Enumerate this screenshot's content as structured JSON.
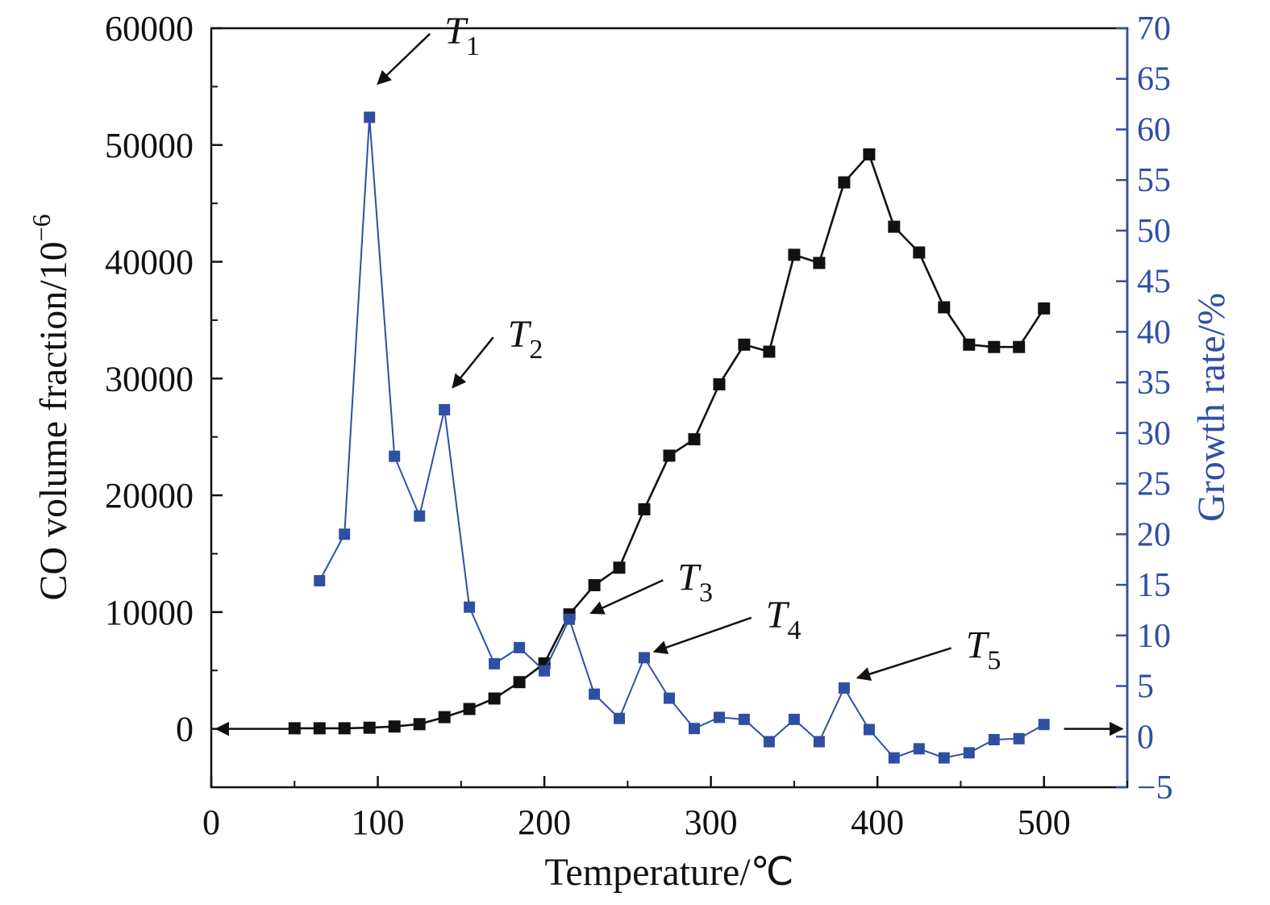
{
  "chart_data": {
    "type": "line",
    "xlabel": "Temperature/℃",
    "xlim": [
      0,
      550
    ],
    "x_ticks": [
      "0",
      "100",
      "200",
      "300",
      "400",
      "500"
    ],
    "ylabel_left": "CO volume fraction/10",
    "ylabel_left_exponent": "−6",
    "ylim_left": [
      -5000,
      60000
    ],
    "left_ticks": [
      "0",
      "10000",
      "20000",
      "30000",
      "40000",
      "50000",
      "60000"
    ],
    "ylabel_right": "Growth rate/%",
    "ylim_right": [
      -5,
      70
    ],
    "right_ticks": [
      "−5",
      "0",
      "5",
      "10",
      "15",
      "20",
      "25",
      "30",
      "35",
      "40",
      "45",
      "50",
      "55",
      "60",
      "65",
      "70"
    ],
    "grid": false,
    "colors": {
      "co_series": "#111111",
      "growth_series": "#2f4fa3",
      "right_axis": "#2f4fa3"
    },
    "series": [
      {
        "axis": "left",
        "marker": "square",
        "points": [
          [
            50,
            50
          ],
          [
            65,
            50
          ],
          [
            80,
            50
          ],
          [
            95,
            100
          ],
          [
            110,
            200
          ],
          [
            125,
            400
          ],
          [
            140,
            1000
          ],
          [
            155,
            1700
          ],
          [
            170,
            2600
          ],
          [
            185,
            4000
          ],
          [
            200,
            5600
          ],
          [
            215,
            9800
          ],
          [
            230,
            12300
          ],
          [
            245,
            13800
          ],
          [
            260,
            18800
          ],
          [
            275,
            23400
          ],
          [
            290,
            24800
          ],
          [
            305,
            29500
          ],
          [
            320,
            32900
          ],
          [
            335,
            32300
          ],
          [
            350,
            40600
          ],
          [
            365,
            39900
          ],
          [
            380,
            46800
          ],
          [
            395,
            49200
          ],
          [
            410,
            43000
          ],
          [
            425,
            40800
          ],
          [
            440,
            36100
          ],
          [
            455,
            32900
          ],
          [
            470,
            32700
          ],
          [
            485,
            32700
          ],
          [
            500,
            36000
          ]
        ]
      },
      {
        "axis": "right",
        "marker": "square",
        "points": [
          [
            65,
            15.4
          ],
          [
            80,
            20
          ],
          [
            95,
            61.2
          ],
          [
            110,
            27.7
          ],
          [
            125,
            21.8
          ],
          [
            140,
            32.3
          ],
          [
            155,
            12.8
          ],
          [
            170,
            7.2
          ],
          [
            185,
            8.8
          ],
          [
            200,
            6.5
          ],
          [
            215,
            11.6
          ],
          [
            230,
            4.2
          ],
          [
            245,
            1.8
          ],
          [
            260,
            7.8
          ],
          [
            275,
            3.8
          ],
          [
            290,
            0.8
          ],
          [
            305,
            1.9
          ],
          [
            320,
            1.7
          ],
          [
            335,
            -0.5
          ],
          [
            350,
            1.7
          ],
          [
            365,
            -0.5
          ],
          [
            380,
            4.8
          ],
          [
            395,
            0.7
          ],
          [
            410,
            -2.1
          ],
          [
            425,
            -1.2
          ],
          [
            440,
            -2.1
          ],
          [
            455,
            -1.6
          ],
          [
            470,
            -0.3
          ],
          [
            485,
            -0.2
          ],
          [
            500,
            1.2
          ]
        ]
      }
    ],
    "annotations": [
      {
        "label": "T",
        "sub": "1",
        "x": 140,
        "y": 68.5,
        "target_x": 100,
        "target_y": 64.5,
        "axis": "right"
      },
      {
        "label": "T",
        "sub": "2",
        "x": 178,
        "y": 38.5,
        "target_x": 145,
        "target_y": 34.5,
        "axis": "right"
      },
      {
        "label": "T",
        "sub": "3",
        "x": 280,
        "y": 14.5,
        "target_x": 228,
        "target_y": 12.2,
        "axis": "right"
      },
      {
        "label": "T",
        "sub": "4",
        "x": 333,
        "y": 10.8,
        "target_x": 266,
        "target_y": 8.4,
        "axis": "right"
      },
      {
        "label": "T",
        "sub": "5",
        "x": 453,
        "y": 7.8,
        "target_x": 388,
        "target_y": 5.8,
        "axis": "right"
      }
    ],
    "axis_arrows": [
      {
        "from_x": 50,
        "to_x": 3,
        "y": 0,
        "axis": "left"
      },
      {
        "from_x": 512,
        "to_x": 547,
        "y": 0,
        "axis": "left"
      }
    ]
  }
}
